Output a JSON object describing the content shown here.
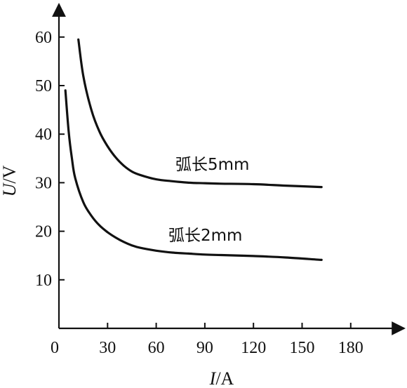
{
  "chart_data": {
    "type": "line",
    "xlabel": {
      "italic": "I",
      "rest": "/A"
    },
    "ylabel": {
      "italic": "U",
      "rest": "/V"
    },
    "xlim": [
      0,
      215
    ],
    "ylim": [
      0,
      68
    ],
    "xticks": [
      0,
      30,
      60,
      90,
      120,
      150,
      180
    ],
    "yticks": [
      10,
      20,
      30,
      40,
      50,
      60
    ],
    "grid": false,
    "series": [
      {
        "name": "弧长5mm",
        "x": [
          12,
          15,
          20,
          25,
          30,
          35,
          40,
          45,
          50,
          60,
          70,
          80,
          90,
          100,
          120,
          140,
          162
        ],
        "y": [
          59.5,
          52,
          45,
          40.5,
          37.5,
          35.2,
          33.5,
          32.3,
          31.6,
          30.7,
          30.3,
          30.0,
          29.9,
          29.8,
          29.7,
          29.4,
          29.1
        ]
      },
      {
        "name": "弧长2mm",
        "x": [
          4,
          6,
          8,
          10,
          15,
          20,
          25,
          30,
          35,
          40,
          45,
          50,
          60,
          70,
          80,
          90,
          100,
          120,
          140,
          162
        ],
        "y": [
          49,
          40.5,
          35,
          31,
          26,
          23.2,
          21.2,
          19.8,
          18.7,
          17.8,
          17.1,
          16.6,
          16.0,
          15.6,
          15.4,
          15.2,
          15.1,
          14.9,
          14.6,
          14.1
        ]
      }
    ]
  }
}
